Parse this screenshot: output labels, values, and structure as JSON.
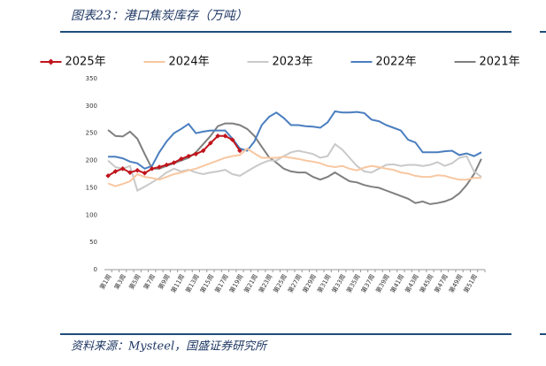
{
  "title": "图表23：港口焦炭库存（万吨）",
  "source": "资料来源：Mysteel，国盛证券研究所",
  "chart_data": {
    "type": "line",
    "categories": [
      "第1周",
      null,
      "第3周",
      null,
      "第5周",
      null,
      "第7周",
      null,
      "第9周",
      null,
      "第11周",
      null,
      "第13周",
      null,
      "第15周",
      null,
      "第17周",
      null,
      "第19周",
      null,
      "第21周",
      null,
      "第23周",
      null,
      "第25周",
      null,
      "第27周",
      null,
      "第29周",
      null,
      "第31周",
      null,
      "第33周",
      null,
      "第35周",
      null,
      "第37周",
      null,
      "第39周",
      null,
      "第41周",
      null,
      "第43周",
      null,
      "第45周",
      null,
      "第47周",
      null,
      "第49周",
      null,
      "第51周",
      null
    ],
    "ylim": [
      0,
      350
    ],
    "yticks": [
      0,
      50,
      100,
      150,
      200,
      250,
      300,
      350
    ],
    "series": [
      {
        "name": "2025年",
        "color": "#c0141c",
        "marker": "diamond",
        "values": [
          172,
          180,
          185,
          178,
          182,
          177,
          185,
          188,
          192,
          196,
          203,
          208,
          212,
          218,
          232,
          245,
          245,
          238,
          218,
          null,
          null,
          null,
          null,
          null,
          null,
          null,
          null,
          null,
          null,
          null,
          null,
          null,
          null,
          null,
          null,
          null,
          null,
          null,
          null,
          null,
          null,
          null,
          null,
          null,
          null,
          null,
          null,
          null,
          null,
          null,
          null,
          null
        ]
      },
      {
        "name": "2024年",
        "color": "#f7c7a1",
        "values": [
          158,
          153,
          157,
          162,
          175,
          170,
          168,
          165,
          170,
          175,
          178,
          182,
          185,
          190,
          195,
          200,
          205,
          208,
          210,
          222,
          213,
          205,
          205,
          205,
          207,
          205,
          203,
          200,
          198,
          195,
          190,
          188,
          190,
          185,
          182,
          187,
          190,
          188,
          185,
          183,
          178,
          176,
          172,
          170,
          170,
          173,
          172,
          168,
          165,
          165,
          168,
          168
        ]
      },
      {
        "name": "2023年",
        "color": "#c9c9c9",
        "values": [
          200,
          188,
          185,
          190,
          145,
          152,
          160,
          168,
          178,
          185,
          180,
          183,
          178,
          175,
          178,
          180,
          183,
          175,
          172,
          180,
          188,
          195,
          200,
          200,
          208,
          215,
          218,
          215,
          212,
          205,
          208,
          230,
          220,
          205,
          190,
          180,
          178,
          185,
          192,
          193,
          190,
          192,
          192,
          190,
          192,
          197,
          190,
          195,
          205,
          208,
          180,
          170
        ]
      },
      {
        "name": "2022年",
        "color": "#4a7ebf",
        "values": [
          207,
          207,
          204,
          198,
          195,
          185,
          190,
          215,
          235,
          250,
          258,
          267,
          250,
          253,
          255,
          255,
          255,
          240,
          222,
          218,
          235,
          265,
          280,
          288,
          278,
          265,
          265,
          263,
          262,
          260,
          270,
          290,
          288,
          288,
          289,
          287,
          275,
          272,
          265,
          260,
          255,
          238,
          233,
          215,
          215,
          215,
          217,
          218,
          210,
          213,
          208,
          215
        ]
      },
      {
        "name": "2021年",
        "color": "#7f7f7f",
        "values": [
          256,
          245,
          244,
          253,
          240,
          212,
          185,
          185,
          190,
          195,
          200,
          205,
          215,
          230,
          245,
          263,
          268,
          268,
          265,
          258,
          245,
          225,
          206,
          196,
          185,
          180,
          178,
          178,
          170,
          165,
          170,
          178,
          170,
          162,
          160,
          155,
          152,
          150,
          145,
          140,
          135,
          130,
          122,
          125,
          120,
          122,
          125,
          130,
          140,
          155,
          175,
          203
        ]
      }
    ]
  }
}
